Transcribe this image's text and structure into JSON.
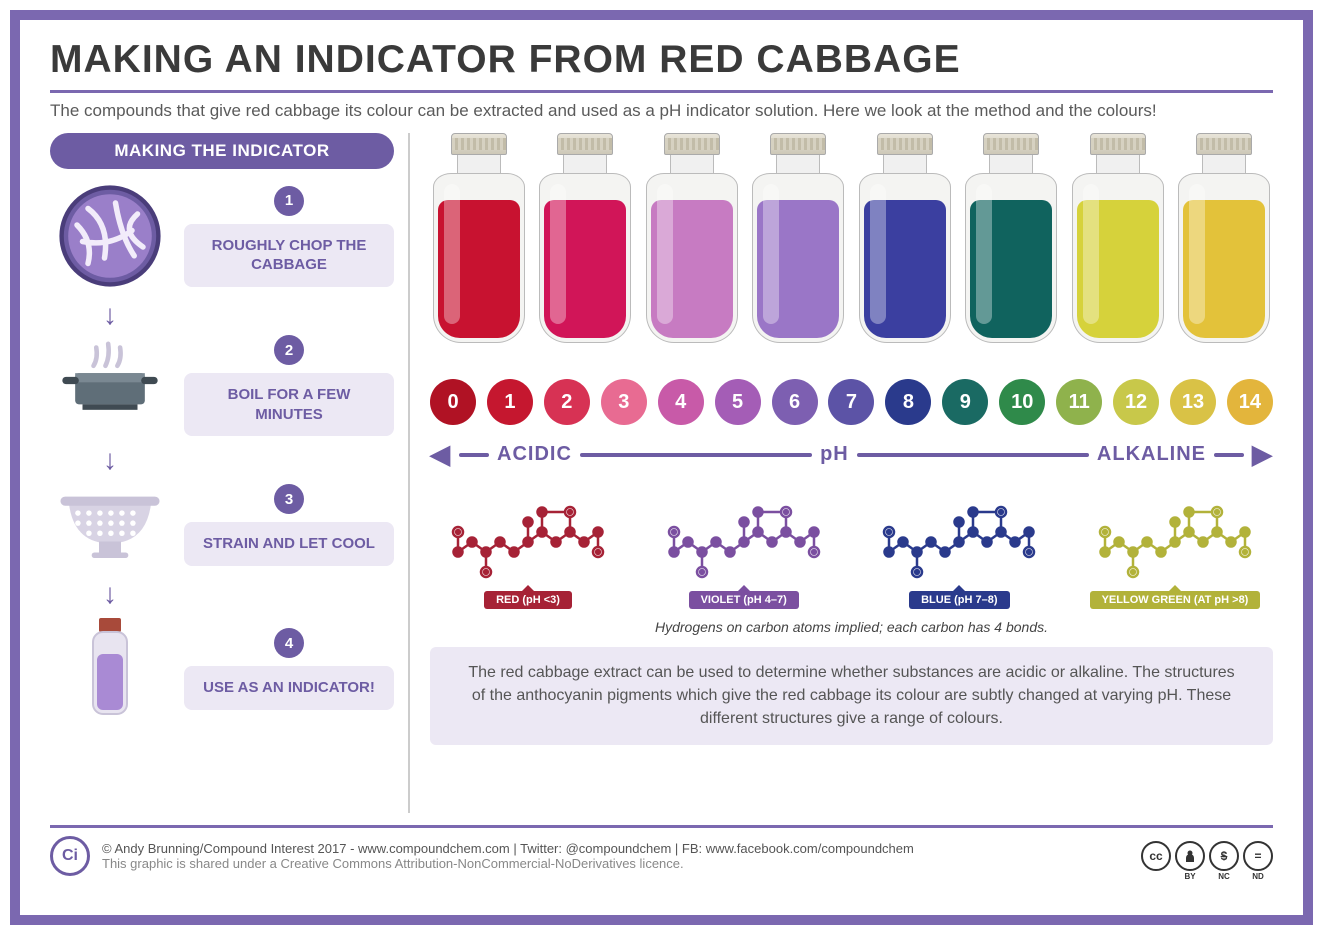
{
  "colors": {
    "frame_border": "#7b68b0",
    "accent": "#6d5ca3",
    "step_bg": "#ece8f4",
    "title": "#3a3a3a"
  },
  "title": "MAKING AN INDICATOR FROM RED CABBAGE",
  "subtitle": "The compounds that give red cabbage its colour can be extracted and used as a pH indicator solution. Here we look at the method and the colours!",
  "left": {
    "header": "MAKING THE INDICATOR",
    "steps": [
      {
        "num": "1",
        "label": "ROUGHLY CHOP THE CABBAGE",
        "icon": "cabbage"
      },
      {
        "num": "2",
        "label": "BOIL FOR A FEW MINUTES",
        "icon": "pot"
      },
      {
        "num": "3",
        "label": "STRAIN AND LET COOL",
        "icon": "strainer"
      },
      {
        "num": "4",
        "label": "USE AS AN INDICATOR!",
        "icon": "vial"
      }
    ]
  },
  "bottles": [
    {
      "color": "#c81230"
    },
    {
      "color": "#d11558"
    },
    {
      "color": "#c77bc2"
    },
    {
      "color": "#9a76c7"
    },
    {
      "color": "#3b3fa0"
    },
    {
      "color": "#10635e"
    },
    {
      "color": "#d6d23b"
    },
    {
      "color": "#e3c23a"
    }
  ],
  "ph_scale": [
    {
      "n": "0",
      "c": "#b01224"
    },
    {
      "n": "1",
      "c": "#c5172f"
    },
    {
      "n": "2",
      "c": "#d73254"
    },
    {
      "n": "3",
      "c": "#e86b92"
    },
    {
      "n": "4",
      "c": "#c85aa8"
    },
    {
      "n": "5",
      "c": "#a45db6"
    },
    {
      "n": "6",
      "c": "#7d5fb1"
    },
    {
      "n": "7",
      "c": "#5c53a6"
    },
    {
      "n": "8",
      "c": "#2a3a8c"
    },
    {
      "n": "9",
      "c": "#1a6a63"
    },
    {
      "n": "10",
      "c": "#2f8a4a"
    },
    {
      "n": "11",
      "c": "#8fb24c"
    },
    {
      "n": "12",
      "c": "#c8c84a"
    },
    {
      "n": "13",
      "c": "#d9c246"
    },
    {
      "n": "14",
      "c": "#e3b53c"
    }
  ],
  "scale_labels": {
    "left": "ACIDIC",
    "mid": "pH",
    "right": "ALKALINE"
  },
  "molecules": [
    {
      "color": "#a62236",
      "label": "RED (pH <3)"
    },
    {
      "color": "#7b4fa0",
      "label": "VIOLET (pH 4–7)"
    },
    {
      "color": "#2a3a8c",
      "label": "BLUE (pH 7–8)"
    },
    {
      "color": "#b2b23a",
      "label": "YELLOW GREEN (AT pH >8)"
    }
  ],
  "mol_note": "Hydrogens on carbon atoms implied; each carbon has 4 bonds.",
  "explain": "The red cabbage extract can be used to determine whether substances are acidic or alkaline. The structures of the anthocyanin pigments which give the red cabbage its colour are subtly changed at varying pH. These different structures give a range of colours.",
  "footer": {
    "credit": "© Andy Brunning/Compound Interest 2017 - www.compoundchem.com | Twitter: @compoundchem | FB: www.facebook.com/compoundchem",
    "licence": "This graphic is shared under a Creative Commons Attribution-NonCommercial-NoDerivatives licence.",
    "logo": "Ci",
    "cc": [
      "cc",
      "BY",
      "NC",
      "ND"
    ],
    "cc_glyph": {
      "cc": "cc",
      "BY": "➊",
      "NC": "$",
      "ND": "="
    }
  }
}
